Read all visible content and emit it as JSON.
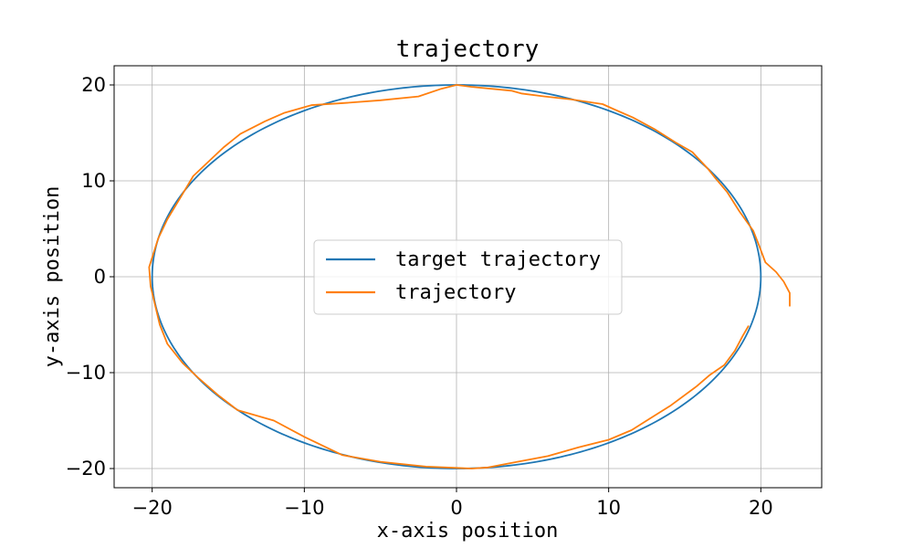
{
  "chart_data": {
    "type": "line",
    "title": "trajectory",
    "xlabel": "x-axis position",
    "ylabel": "y-axis position",
    "xlim": [
      -22.5,
      24.0
    ],
    "ylim": [
      -22.0,
      22.0
    ],
    "xticks": [
      -20,
      -10,
      0,
      10,
      20
    ],
    "yticks": [
      -20,
      -10,
      0,
      10,
      20
    ],
    "xtick_labels": [
      "−20",
      "−10",
      "0",
      "10",
      "20"
    ],
    "ytick_labels": [
      "−20",
      "−10",
      "0",
      "10",
      "20"
    ],
    "grid": true,
    "legend_position": "center",
    "series": [
      {
        "name": "target trajectory",
        "color": "#1f77b4",
        "shape": "circle",
        "center": [
          0,
          0
        ],
        "radius": 20
      },
      {
        "name": "trajectory",
        "color": "#ff7f0e",
        "x": [
          21.9,
          21.9,
          21.5,
          21.0,
          20.3,
          19.9,
          19.5,
          18.6,
          17.8,
          17.0,
          16.5,
          15.5,
          14.4,
          13.0,
          11.6,
          10.3,
          9.6,
          7.5,
          5.8,
          4.3,
          3.6,
          1.0,
          0,
          -1.0,
          -2.5,
          -5.0,
          -7.5,
          -9.5,
          -11.3,
          -12.6,
          -14.2,
          -15.3,
          -17.3,
          -18.2,
          -19.0,
          -19.6,
          -20.2,
          -20.1,
          -19.8,
          -19.5,
          -19.0,
          -18.0,
          -17.0,
          -15.7,
          -14.4,
          -12.0,
          -10.0,
          -7.5,
          -5.0,
          -2.0,
          1.0,
          2.0,
          4.0,
          6.0,
          8.0,
          10.0,
          11.5,
          12.7,
          14.1,
          15.8,
          16.6,
          17.6,
          18.3,
          18.8,
          19.2
        ],
        "y": [
          -3.1,
          -1.7,
          -0.5,
          0.5,
          1.5,
          3.2,
          4.8,
          6.8,
          8.8,
          10.3,
          11.3,
          13.0,
          14.0,
          15.4,
          16.6,
          17.5,
          18.0,
          18.5,
          18.8,
          19.1,
          19.4,
          19.8,
          20.0,
          19.6,
          18.8,
          18.4,
          18.1,
          17.9,
          17.1,
          16.2,
          14.9,
          13.5,
          10.5,
          8.1,
          6.0,
          4.0,
          1.0,
          -1.0,
          -3.0,
          -5.0,
          -7.0,
          -9.0,
          -10.5,
          -12.3,
          -13.9,
          -15.0,
          -16.7,
          -18.6,
          -19.3,
          -19.8,
          -20.0,
          -19.9,
          -19.3,
          -18.7,
          -17.8,
          -17.0,
          -16.0,
          -14.8,
          -13.4,
          -11.4,
          -10.3,
          -9.2,
          -7.7,
          -6.2,
          -5.1
        ]
      }
    ]
  }
}
